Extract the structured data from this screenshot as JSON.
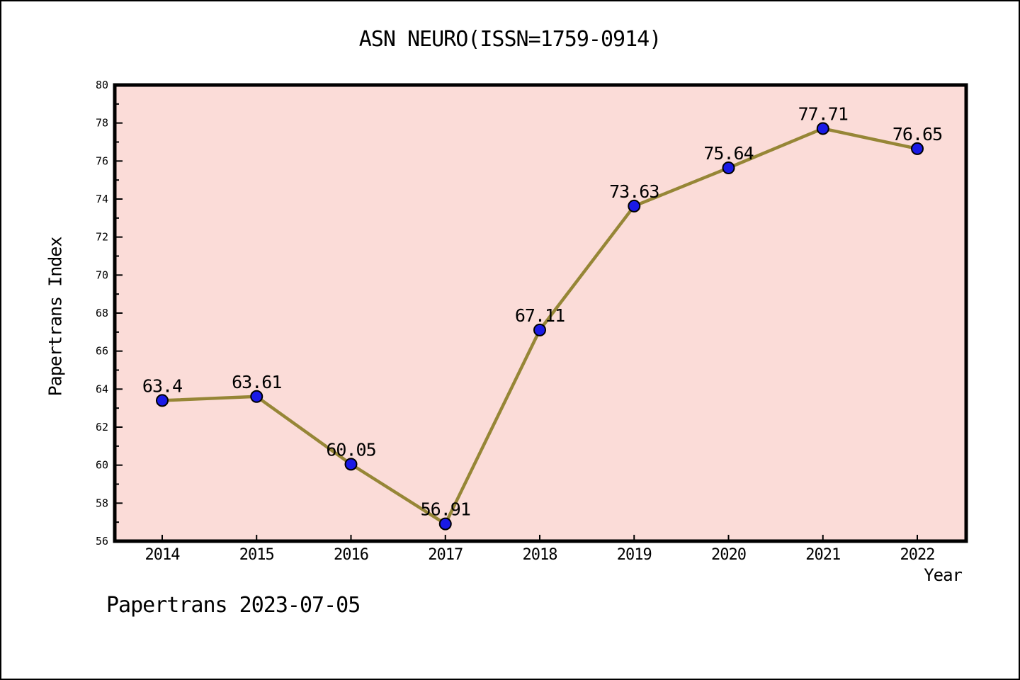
{
  "page": {
    "footer": "Papertrans 2023-07-05"
  },
  "chart_data": {
    "type": "line",
    "title": "ASN NEURO(ISSN=1759-0914)",
    "xlabel": "Year",
    "ylabel": "Papertrans Index",
    "categories": [
      "2014",
      "2015",
      "2016",
      "2017",
      "2018",
      "2019",
      "2020",
      "2021",
      "2022"
    ],
    "values": [
      63.4,
      63.61,
      60.05,
      56.91,
      67.11,
      73.63,
      75.64,
      77.71,
      76.65
    ],
    "point_labels": [
      "63.4",
      "63.61",
      "60.05",
      "56.91",
      "67.11",
      "73.63",
      "75.64",
      "77.71",
      "76.65"
    ],
    "ylim": [
      56,
      80
    ],
    "ytick_step": 2,
    "yminor_step": 1,
    "grid": false,
    "legend": "none",
    "colors": {
      "page_bg": "#FFFFFF",
      "plot_bg": "#FBDCD8",
      "line": "#968636",
      "marker": "#1A1AE6",
      "marker_edge": "#000000",
      "frame": "#000000",
      "text": "#000000"
    }
  }
}
